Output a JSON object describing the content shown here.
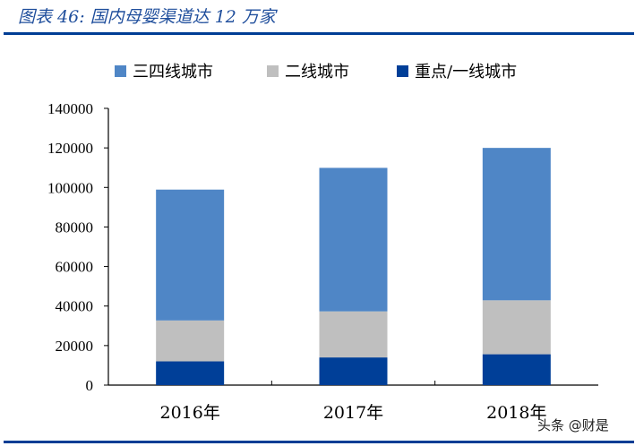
{
  "header": {
    "title": "图表 46:  国内母婴渠道达 12 万家"
  },
  "watermark": "头条 @财是",
  "chart_data": {
    "type": "bar",
    "stacked": true,
    "title": "",
    "xlabel": "",
    "ylabel": "",
    "categories": [
      "2016年",
      "2017年",
      "2018年"
    ],
    "ylim": [
      0,
      140000
    ],
    "yticks": [
      0,
      20000,
      40000,
      60000,
      80000,
      100000,
      120000,
      140000
    ],
    "grid": false,
    "legend_position": "top",
    "series": [
      {
        "name": "重点/一线城市",
        "color": "#003f98",
        "values": [
          12000,
          14000,
          15600
        ]
      },
      {
        "name": "二线城市",
        "color": "#bfbfbf",
        "values": [
          20700,
          23300,
          27300
        ]
      },
      {
        "name": "三四线城市",
        "color": "#4f86c6",
        "values": [
          66200,
          72600,
          77100
        ]
      }
    ],
    "legend_order": [
      "三四线城市",
      "二线城市",
      "重点/一线城市"
    ]
  }
}
